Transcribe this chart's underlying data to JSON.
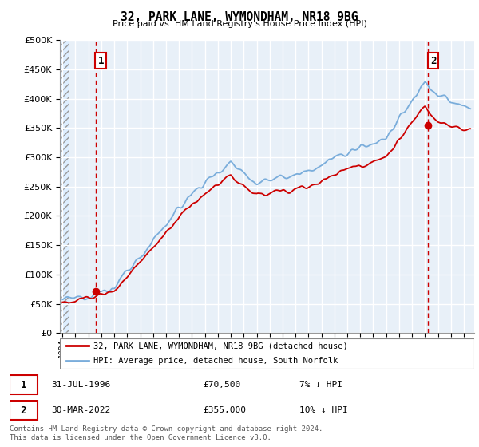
{
  "title": "32, PARK LANE, WYMONDHAM, NR18 9BG",
  "subtitle": "Price paid vs. HM Land Registry's House Price Index (HPI)",
  "legend_label_red": "32, PARK LANE, WYMONDHAM, NR18 9BG (detached house)",
  "legend_label_blue": "HPI: Average price, detached house, South Norfolk",
  "annotation1_date": "31-JUL-1996",
  "annotation1_price": "£70,500",
  "annotation1_hpi": "7% ↓ HPI",
  "annotation2_date": "30-MAR-2022",
  "annotation2_price": "£355,000",
  "annotation2_hpi": "10% ↓ HPI",
  "footnote": "Contains HM Land Registry data © Crown copyright and database right 2024.\nThis data is licensed under the Open Government Licence v3.0.",
  "red_color": "#cc0000",
  "blue_color": "#7aaddb",
  "ylim": [
    0,
    500000
  ],
  "yticks": [
    0,
    50000,
    100000,
    150000,
    200000,
    250000,
    300000,
    350000,
    400000,
    450000,
    500000
  ],
  "sale1_year": 1996.58,
  "sale1_price": 70500,
  "sale2_year": 2022.25,
  "sale2_price": 355000,
  "xmin": 1993.8,
  "xmax": 2025.8
}
